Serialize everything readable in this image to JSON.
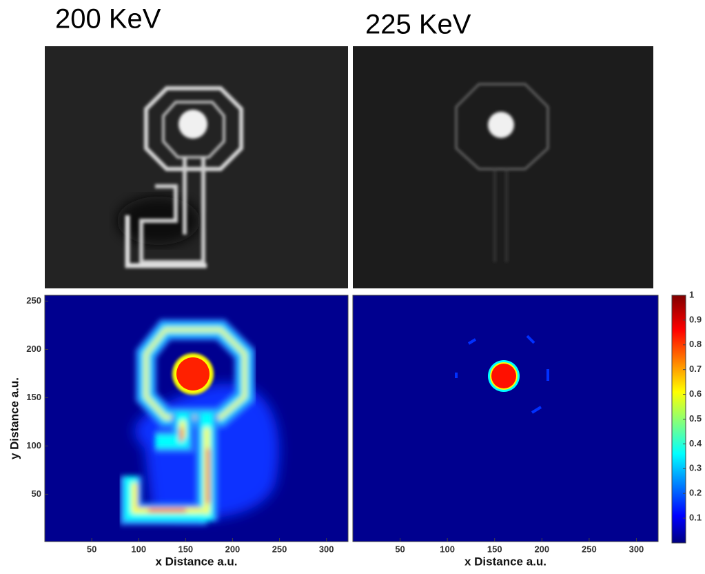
{
  "titles": [
    "200 KeV",
    "225 KeV"
  ],
  "plots": [
    {
      "xlabel": "x Distance a.u.",
      "ylabel": "y Distance a.u.",
      "xlim": [
        0,
        323
      ],
      "ylim": [
        1,
        256
      ],
      "xticks": [
        50,
        100,
        150,
        200,
        250,
        300
      ],
      "yticks": [
        50,
        100,
        150,
        200,
        250
      ]
    },
    {
      "xlabel": "x Distance a.u.",
      "xlim": [
        0,
        323
      ],
      "xticks": [
        50,
        100,
        150,
        200,
        250,
        300
      ]
    }
  ],
  "colorbar": {
    "lim": [
      0,
      1
    ],
    "ticks": [
      0.1,
      0.2,
      0.3,
      0.4,
      0.5,
      0.6,
      0.7,
      0.8,
      0.9,
      1
    ]
  }
}
